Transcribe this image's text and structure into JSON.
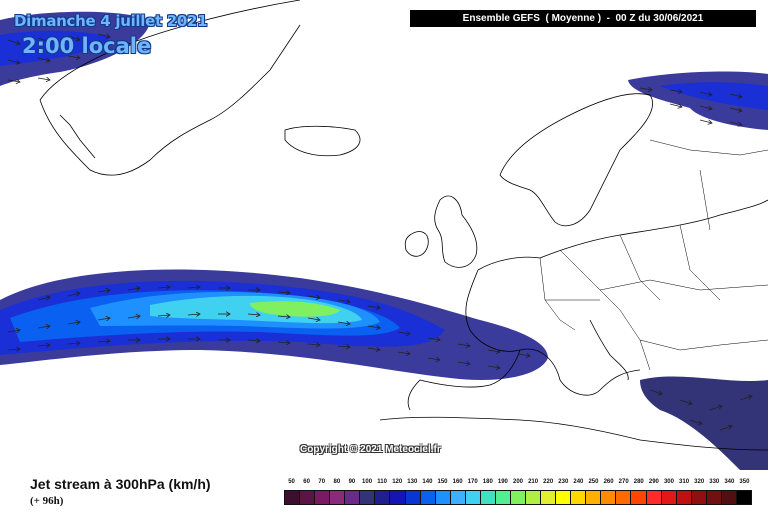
{
  "header": {
    "date": "Dimanche 4 juillet 2021",
    "local_time": "2:00 locale",
    "model_info": "Ensemble GEFS  ( Moyenne )  -  00 Z du 30/06/2021"
  },
  "copyright": "Copyright © 2021 Meteociel.fr",
  "legend": {
    "product": "Jet stream à 300hPa (km/h)",
    "lead": "(+ 96h)",
    "scale_values": [
      "50",
      "60",
      "70",
      "80",
      "90",
      "100",
      "110",
      "120",
      "130",
      "140",
      "150",
      "160",
      "170",
      "180",
      "190",
      "200",
      "210",
      "220",
      "230",
      "240",
      "250",
      "260",
      "270",
      "280",
      "290",
      "300",
      "310",
      "320",
      "330",
      "340",
      "350"
    ],
    "scale_colors": [
      "#3b0f2d",
      "#5a1446",
      "#7a1a62",
      "#8a2a7a",
      "#6a2a8a",
      "#333377",
      "#1f1f8f",
      "#1515b5",
      "#0a35d5",
      "#0a60f0",
      "#1e90ff",
      "#3fb0ff",
      "#40d0f0",
      "#40e0c0",
      "#50f090",
      "#80f060",
      "#b0f040",
      "#e0f030",
      "#ffff00",
      "#ffd800",
      "#ffb000",
      "#ff8c00",
      "#ff6a00",
      "#ff4500",
      "#ff2a2a",
      "#e01818",
      "#c01010",
      "#901010",
      "#701010",
      "#501010",
      "#000000"
    ]
  }
}
